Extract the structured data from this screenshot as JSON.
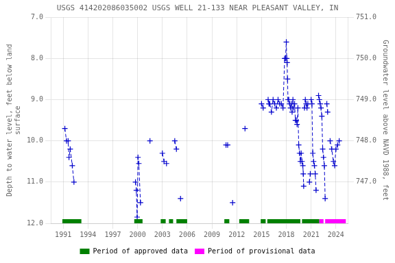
{
  "chart_data": {
    "type": "line",
    "title": "USGS 414202086035002 USGS WELL 21-133 NEAR PLEASANT VALLEY, IN",
    "ylabel": "Depth to water level, feet below land\nsurface",
    "y2label": "Groundwater level above NAVD 1988, feet",
    "xlim": [
      1989.5,
      2025.5
    ],
    "xticks": [
      1991,
      1994,
      1997,
      2000,
      2003,
      2006,
      2009,
      2012,
      2015,
      2018,
      2021,
      2024
    ],
    "ylim": [
      12.0,
      7.0
    ],
    "yticks": [
      {
        "value": 7.0,
        "label": "7.0"
      },
      {
        "value": 8.0,
        "label": "8.0"
      },
      {
        "value": 9.0,
        "label": "9.0"
      },
      {
        "value": 10.0,
        "label": "10.0"
      },
      {
        "value": 11.0,
        "label": "11.0"
      },
      {
        "value": 12.0,
        "label": "12.0"
      }
    ],
    "y2lim": [
      746.0,
      751.0
    ],
    "y2ticks": [
      {
        "value": 747.0,
        "label": "747.0"
      },
      {
        "value": 748.0,
        "label": "748.0"
      },
      {
        "value": 749.0,
        "label": "749.0"
      },
      {
        "value": 750.0,
        "label": "750.0"
      },
      {
        "value": 751.0,
        "label": "751.0"
      }
    ],
    "grid": true,
    "legend": "bottom",
    "x": [
      1991.2,
      1991.4,
      1991.6,
      1991.7,
      1991.85,
      1992.1,
      1992.3,
      null,
      1999.75,
      1999.85,
      1999.95,
      2000.05,
      2000.15,
      2000.35,
      null,
      2001.5,
      null,
      2003.0,
      2003.2,
      2003.5,
      null,
      2004.5,
      2004.7,
      null,
      2005.2,
      null,
      2010.7,
      2010.9,
      null,
      2011.5,
      null,
      2013.0,
      null,
      2015.0,
      2015.2,
      null,
      2015.8,
      2015.9,
      2016.0,
      2016.2,
      2016.4,
      2016.6,
      2016.8,
      2017.0,
      2017.2,
      2017.4,
      2017.6,
      2017.8,
      2017.9,
      2018.0,
      2018.05,
      2018.1,
      2018.15,
      2018.2,
      2018.3,
      2018.4,
      2018.5,
      2018.6,
      2018.7,
      2018.8,
      2018.9,
      2019.0,
      2019.1,
      2019.2,
      2019.3,
      2019.4,
      2019.5,
      2019.6,
      2019.7,
      2019.8,
      2019.9,
      2020.0,
      2020.05,
      2020.1,
      null,
      2020.2,
      2020.3,
      2020.4,
      2020.5,
      2020.6,
      null,
      2020.8,
      2020.9,
      null,
      2021.0,
      2021.1,
      2021.2,
      2021.3,
      2021.4,
      2021.5,
      2021.6,
      null,
      2021.9,
      2022.0,
      2022.1,
      2022.2,
      2022.3,
      2022.4,
      2022.5,
      2022.6,
      2022.7,
      null,
      2022.9,
      2023.0,
      null,
      2023.3,
      2023.5,
      2023.7,
      2023.85,
      2024.0,
      2024.2,
      2024.4
    ],
    "series": [
      {
        "color": "#0000cc",
        "marker": "+",
        "line_style": "dashed",
        "values": [
          9.7,
          10.0,
          10.0,
          10.4,
          10.2,
          10.6,
          11.0,
          null,
          11.0,
          11.2,
          11.85,
          10.4,
          10.55,
          11.5,
          null,
          10.0,
          null,
          10.3,
          10.5,
          10.55,
          null,
          10.0,
          10.2,
          null,
          11.4,
          null,
          10.1,
          10.1,
          null,
          11.5,
          null,
          9.7,
          null,
          9.1,
          9.2,
          null,
          9.0,
          9.1,
          9.1,
          9.3,
          9.0,
          9.1,
          9.2,
          9.0,
          9.1,
          9.1,
          9.2,
          8.0,
          8.0,
          7.6,
          8.0,
          8.1,
          8.5,
          9.0,
          9.0,
          9.1,
          9.2,
          9.1,
          9.3,
          9.0,
          9.2,
          9.1,
          9.5,
          9.5,
          9.6,
          9.2,
          10.1,
          10.3,
          10.5,
          10.3,
          10.5,
          10.6,
          10.8,
          11.1,
          null,
          9.2,
          9.0,
          9.1,
          9.2,
          9.1,
          null,
          11.0,
          10.8,
          null,
          9.0,
          9.1,
          10.3,
          10.5,
          10.6,
          10.8,
          11.2,
          null,
          8.9,
          9.0,
          9.1,
          9.2,
          9.4,
          10.2,
          10.4,
          10.6,
          11.4,
          null,
          9.1,
          9.3,
          null,
          10.0,
          10.2,
          10.5,
          10.6,
          10.2,
          10.1,
          10.0
        ]
      }
    ],
    "periods": [
      {
        "name": "Period of approved data",
        "color": "#008000",
        "ranges": [
          [
            1990.9,
            1993.2
          ],
          [
            1999.6,
            2000.6
          ],
          [
            2002.8,
            2003.4
          ],
          [
            2003.8,
            2004.3
          ],
          [
            2004.7,
            2006.0
          ],
          [
            2010.5,
            2011.1
          ],
          [
            2012.3,
            2013.5
          ],
          [
            2014.9,
            2015.5
          ],
          [
            2015.7,
            2019.7
          ],
          [
            2019.9,
            2022.0
          ]
        ]
      },
      {
        "name": "Period of provisional data",
        "color": "#ff00ff",
        "ranges": [
          [
            2022.0,
            2022.5
          ],
          [
            2022.7,
            2025.2
          ]
        ]
      }
    ]
  }
}
